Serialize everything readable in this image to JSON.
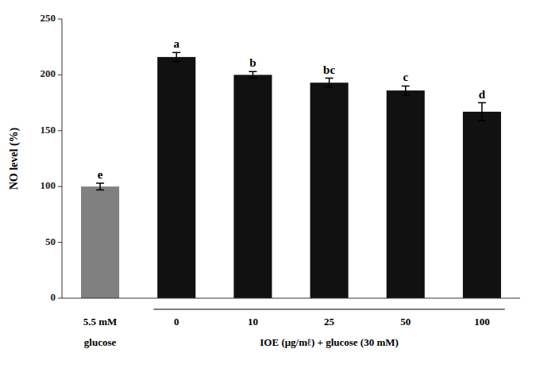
{
  "chart_data": {
    "type": "bar",
    "categories": [
      "5.5 mM\nglucose",
      "0",
      "10",
      "25",
      "50",
      "100"
    ],
    "values": [
      100,
      216,
      200,
      193,
      186,
      167
    ],
    "errors": [
      3,
      4,
      3,
      4,
      4,
      8
    ],
    "colors": [
      "#808080",
      "#111111",
      "#111111",
      "#111111",
      "#111111",
      "#111111"
    ],
    "annotations": [
      "e",
      "a",
      "b",
      "bc",
      "c",
      "d"
    ],
    "ylabel": "NO level (%)",
    "xlabel": "IOE (μg/mℓ) + glucose (30 mM)",
    "ylim": [
      0,
      250
    ],
    "yticks": [
      0,
      50,
      100,
      150,
      200,
      250
    ],
    "grid": false
  }
}
